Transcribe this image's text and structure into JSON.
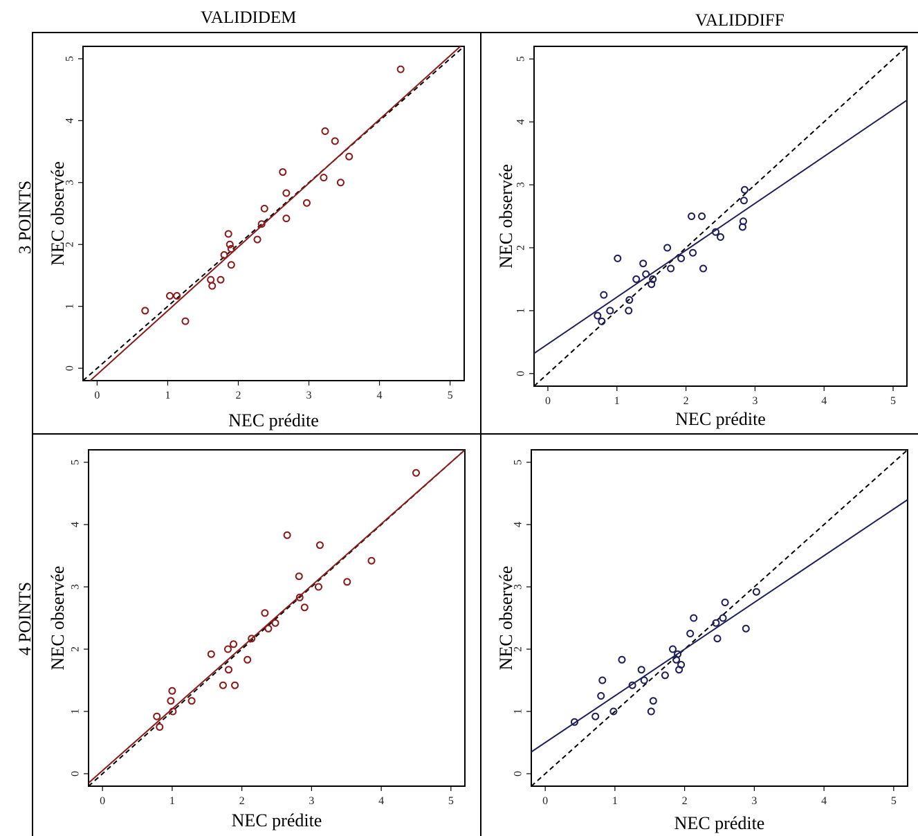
{
  "columns": [
    "VALIDIDEM",
    "VALIDDIFF"
  ],
  "rows": [
    "3 POINTS",
    "4 POINTS"
  ],
  "colors": {
    "validiidem_fit": "#8b1a1a",
    "validdiff_fit": "#1f1f5a",
    "identity": "#000000",
    "frame": "#000000"
  },
  "chart_data": [
    {
      "type": "scatter",
      "panel": "3 POINTS / VALIDIDEM",
      "xlabel": "NEC prédite",
      "ylabel": "NEC observée",
      "xlim": [
        -0.2,
        5.2
      ],
      "ylim": [
        -0.2,
        5.2
      ],
      "ticks": [
        0,
        1,
        2,
        3,
        4,
        5
      ],
      "tick_labels": [
        "0",
        "1",
        "2",
        "3",
        "4",
        "5"
      ],
      "identity_line": true,
      "fit_line": {
        "intercept": -0.1,
        "slope": 1.03
      },
      "x": [
        0.68,
        1.03,
        1.13,
        1.25,
        1.61,
        1.63,
        1.75,
        1.8,
        1.86,
        1.88,
        1.9,
        1.9,
        2.27,
        2.33,
        2.37,
        2.63,
        2.68,
        2.68,
        2.97,
        3.21,
        3.23,
        3.37,
        3.45,
        3.57,
        4.3
      ],
      "y": [
        0.93,
        1.17,
        1.17,
        0.76,
        1.43,
        1.33,
        1.43,
        1.83,
        2.17,
        2.0,
        1.67,
        1.93,
        2.08,
        2.33,
        2.58,
        3.17,
        2.83,
        2.42,
        2.67,
        3.08,
        3.83,
        3.67,
        3.0,
        3.42,
        4.83
      ]
    },
    {
      "type": "scatter",
      "panel": "3 POINTS / VALIDDIFF",
      "xlabel": "NEC prédite",
      "ylabel": "NEC observée",
      "xlim": [
        -0.2,
        5.2
      ],
      "ylim": [
        -0.2,
        5.2
      ],
      "ticks": [
        0,
        1,
        2,
        3,
        4,
        5
      ],
      "tick_labels": [
        "0",
        "1",
        "2",
        "3",
        "4",
        "5"
      ],
      "identity_line": true,
      "fit_line": {
        "intercept": 0.47,
        "slope": 0.745
      },
      "x": [
        0.72,
        0.78,
        0.81,
        0.9,
        1.01,
        1.17,
        1.18,
        1.28,
        1.38,
        1.42,
        1.5,
        1.52,
        1.73,
        1.78,
        1.93,
        2.08,
        2.1,
        2.23,
        2.25,
        2.43,
        2.5,
        2.82,
        2.83,
        2.84,
        2.85
      ],
      "y": [
        0.92,
        0.83,
        1.25,
        1.0,
        1.83,
        1.0,
        1.17,
        1.5,
        1.75,
        1.58,
        1.42,
        1.5,
        2.0,
        1.67,
        1.83,
        2.5,
        1.92,
        2.5,
        1.67,
        2.25,
        2.17,
        2.33,
        2.42,
        2.75,
        2.92
      ]
    },
    {
      "type": "scatter",
      "panel": "4 POINTS / VALIDIDEM",
      "xlabel": "NEC prédite",
      "ylabel": "NEC observée",
      "xlim": [
        -0.2,
        5.2
      ],
      "ylim": [
        -0.2,
        5.2
      ],
      "ticks": [
        0,
        1,
        2,
        3,
        4,
        5
      ],
      "tick_labels": [
        "0",
        "1",
        "2",
        "3",
        "4",
        "5"
      ],
      "identity_line": true,
      "fit_line": {
        "intercept": 0.05,
        "slope": 0.99
      },
      "x": [
        0.78,
        0.82,
        0.98,
        1.0,
        1.01,
        1.28,
        1.56,
        1.73,
        1.8,
        1.81,
        1.88,
        1.9,
        2.08,
        2.14,
        2.33,
        2.38,
        2.48,
        2.65,
        2.82,
        2.83,
        2.9,
        3.1,
        3.12,
        3.51,
        3.86,
        4.5
      ],
      "y": [
        0.92,
        0.75,
        1.17,
        1.33,
        1.0,
        1.17,
        1.92,
        1.42,
        2.0,
        1.67,
        2.08,
        1.42,
        1.83,
        2.17,
        2.58,
        2.33,
        2.42,
        3.83,
        3.17,
        2.83,
        2.67,
        3.0,
        3.67,
        3.08,
        3.42,
        4.83
      ]
    },
    {
      "type": "scatter",
      "panel": "4 POINTS / VALIDDIFF",
      "xlabel": "NEC prédite",
      "ylabel": "NEC observée",
      "xlim": [
        -0.2,
        5.2
      ],
      "ylim": [
        -0.2,
        5.2
      ],
      "ticks": [
        0,
        1,
        2,
        3,
        4,
        5
      ],
      "tick_labels": [
        "0",
        "1",
        "2",
        "3",
        "4",
        "5"
      ],
      "identity_line": true,
      "fit_line": {
        "intercept": 0.5,
        "slope": 0.75
      },
      "x": [
        0.42,
        0.72,
        0.8,
        0.82,
        0.98,
        1.1,
        1.25,
        1.38,
        1.42,
        1.52,
        1.55,
        1.72,
        1.83,
        1.88,
        1.9,
        1.92,
        1.95,
        2.08,
        2.13,
        2.45,
        2.47,
        2.55,
        2.58,
        2.88,
        3.03
      ],
      "y": [
        0.83,
        0.92,
        1.25,
        1.5,
        1.0,
        1.83,
        1.42,
        1.67,
        1.5,
        1.0,
        1.17,
        1.58,
        2.0,
        1.83,
        1.92,
        1.67,
        1.75,
        2.25,
        2.5,
        2.42,
        2.17,
        2.5,
        2.75,
        2.33,
        2.92
      ]
    }
  ]
}
